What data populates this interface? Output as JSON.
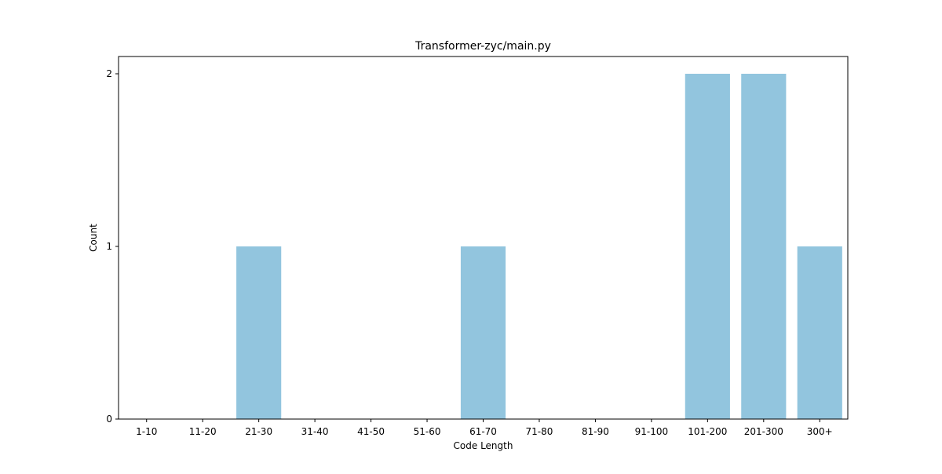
{
  "chart_data": {
    "type": "bar",
    "title": "Transformer-zyc/main.py",
    "xlabel": "Code Length",
    "ylabel": "Count",
    "categories": [
      "1-10",
      "11-20",
      "21-30",
      "31-40",
      "41-50",
      "51-60",
      "61-70",
      "71-80",
      "81-90",
      "91-100",
      "101-200",
      "201-300",
      "300+"
    ],
    "values": [
      0,
      0,
      1,
      0,
      0,
      0,
      1,
      0,
      0,
      0,
      2,
      2,
      1
    ],
    "ylim": [
      0,
      2.1
    ],
    "yticks": [
      0,
      1,
      2
    ],
    "grid": false,
    "bar_color": "#92c5de"
  }
}
